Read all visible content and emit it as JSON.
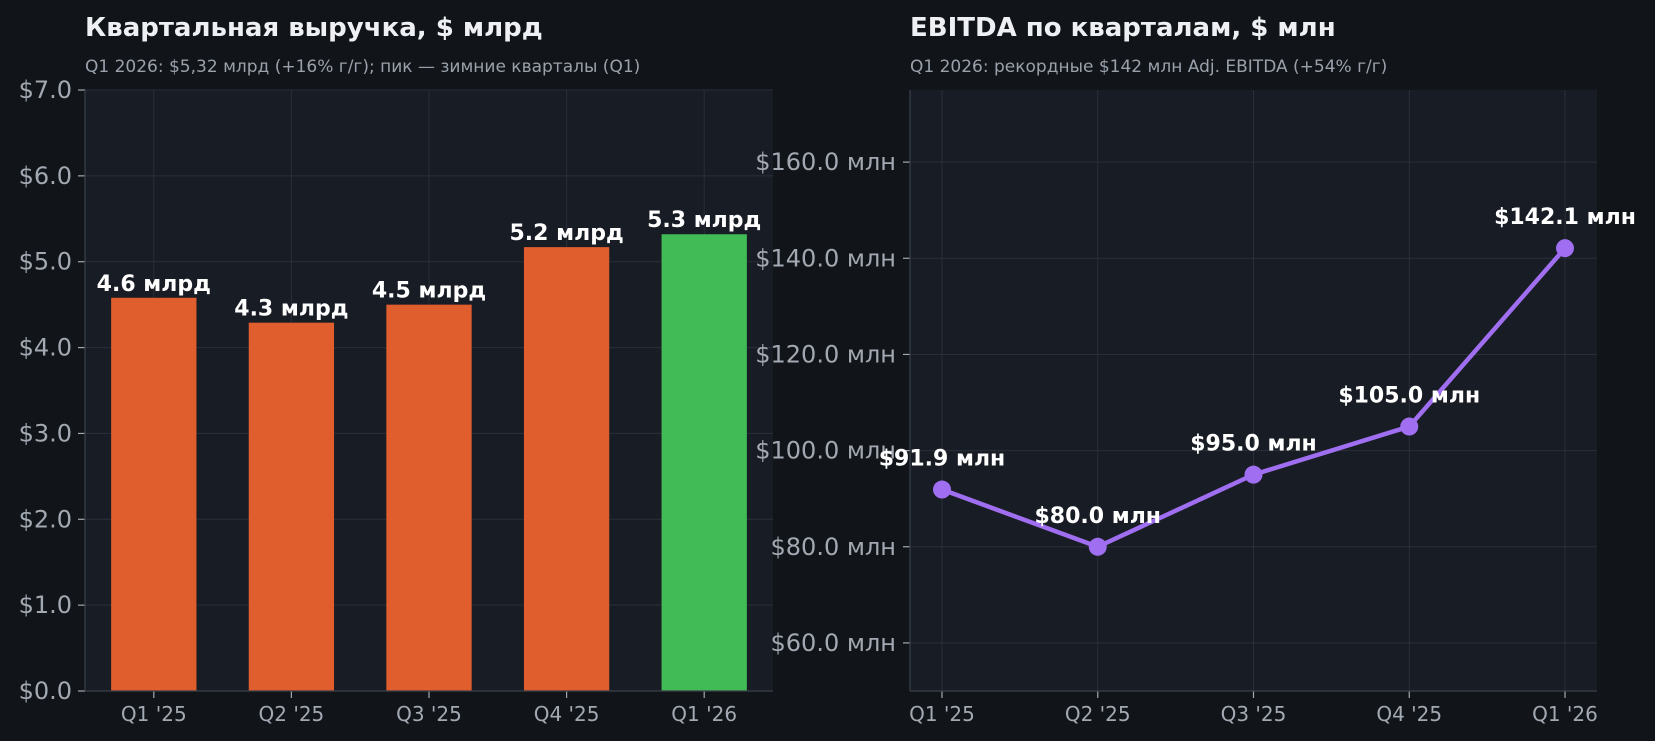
{
  "colors": {
    "background": "#111519",
    "plot_background": "#181c24",
    "bar_default": "#e05d2d",
    "bar_highlight": "#41bb55",
    "line": "#a06ef0"
  },
  "chart_data": [
    {
      "type": "bar",
      "title": "Квартальная выручка, $ млрд",
      "subtitle": "Q1 2026: $5,32 млрд (+16% г/г); пик — зимние кварталы (Q1)",
      "xlabel": "",
      "ylabel": "",
      "categories": [
        "Q1 '25",
        "Q2 '25",
        "Q3 '25",
        "Q4 '25",
        "Q1 '26"
      ],
      "values": [
        4.58,
        4.29,
        4.5,
        5.17,
        5.32
      ],
      "data_labels": [
        "4.6 млрд",
        "4.3 млрд",
        "4.5 млрд",
        "5.2 млрд",
        "5.3 млрд"
      ],
      "highlight_index": 4,
      "ylim": [
        0,
        7
      ],
      "yticks": [
        0,
        1,
        2,
        3,
        4,
        5,
        6,
        7
      ],
      "ytick_labels": [
        "$0.0",
        "$1.0",
        "$2.0",
        "$3.0",
        "$4.0",
        "$5.0",
        "$6.0",
        "$7.0"
      ],
      "grid": true,
      "legend": "none"
    },
    {
      "type": "line",
      "title": "EBITDA по кварталам, $ млн",
      "subtitle": "Q1 2026: рекордные $142 млн Adj. EBITDA (+54% г/г)",
      "xlabel": "",
      "ylabel": "",
      "categories": [
        "Q1 '25",
        "Q2 '25",
        "Q3 '25",
        "Q4 '25",
        "Q1 '26"
      ],
      "values": [
        91.9,
        80.0,
        95.0,
        105.0,
        142.1
      ],
      "data_labels": [
        "$91.9 млн",
        "$80.0 млн",
        "$95.0 млн",
        "$105.0 млн",
        "$142.1 млн"
      ],
      "ylim": [
        50,
        175
      ],
      "yticks": [
        60,
        80,
        100,
        120,
        140,
        160
      ],
      "ytick_labels": [
        "$60.0 млн",
        "$80.0 млн",
        "$100.0 млн",
        "$120.0 млн",
        "$140.0 млн",
        "$160.0 млн"
      ],
      "grid": true,
      "legend": "none"
    }
  ]
}
